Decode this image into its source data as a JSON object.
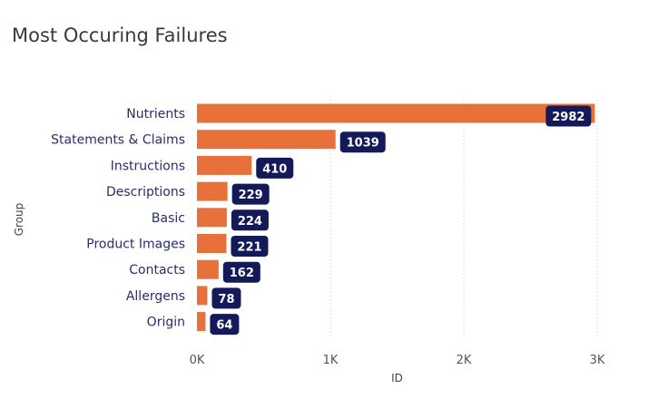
{
  "chart_data": {
    "type": "bar",
    "orientation": "horizontal",
    "title": "Most Occuring Failures",
    "xlabel": "ID",
    "ylabel": "Group",
    "categories": [
      "Nutrients",
      "Statements & Claims",
      "Instructions",
      "Descriptions",
      "Basic",
      "Product Images",
      "Contacts",
      "Allergens",
      "Origin"
    ],
    "values": [
      2982,
      1039,
      410,
      229,
      224,
      221,
      162,
      78,
      64
    ],
    "xlim": [
      0,
      3000
    ],
    "xticks": [
      0,
      1000,
      2000,
      3000
    ],
    "xtick_labels": [
      "0K",
      "1K",
      "2K",
      "3K"
    ],
    "grid": true,
    "bar_color": "#e8703a",
    "data_label_bg": "#14195a",
    "data_label_color": "#ffffff"
  }
}
